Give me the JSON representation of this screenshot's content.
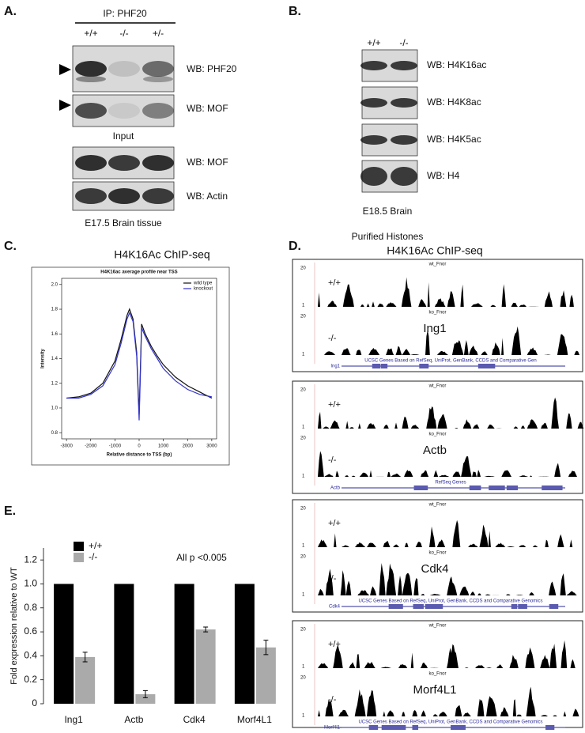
{
  "panel_a": {
    "letter": "A.",
    "ip": "IP: PHF20",
    "genotypes": [
      "+/+",
      "-/-",
      "+/-"
    ],
    "blots": [
      "WB: PHF20",
      "WB: MOF",
      "WB: MOF",
      "WB: Actin"
    ],
    "input": "Input",
    "caption": "E17.5 Brain tissue"
  },
  "panel_b": {
    "letter": "B.",
    "genotypes": [
      "+/+",
      "-/-"
    ],
    "blots": [
      "WB: H4K16ac",
      "WB: H4K8ac",
      "WB: H4K5ac",
      "WB: H4"
    ],
    "caption": "E18.5 Brain",
    "subcaption": "Purified Histones"
  },
  "panel_c": {
    "letter": "C.",
    "title": "H4K16Ac ChIP-seq"
  },
  "panel_d": {
    "letter": "D.",
    "title": "H4K16Ac ChIP-seq",
    "tracks": [
      {
        "wt_track": "wt_Fnor",
        "ko_track": "ko_Fnor",
        "scale_top": "20",
        "scale_bottom": "1",
        "wt": "+/+",
        "ko": "-/-",
        "gene": "Ing1",
        "annotation": "UCSC Genes Based on RefSeq, UniProt, GenBank, CCDS and Comparative Gen",
        "gene_label": "Ing1"
      },
      {
        "wt_track": "wt_Fnor",
        "ko_track": "ko_Fnor",
        "scale_top": "20",
        "scale_bottom": "1",
        "wt": "+/+",
        "ko": "-/-",
        "gene": "Actb",
        "annotation": "RefSeq Genes",
        "gene_label": "Actb"
      },
      {
        "wt_track": "wt_Fnor",
        "ko_track": "ko_Fnor",
        "scale_top": "20",
        "scale_bottom": "1",
        "wt": "+/+",
        "ko": "-/-",
        "gene": "Cdk4",
        "annotation": "UCSC Genes Based on RefSeq, UniProt, GenBank, CCDS and Comparative Genomics",
        "gene_label": "Cdk4"
      },
      {
        "wt_track": "wt_Fnor",
        "ko_track": "ko_Fnor",
        "scale_top": "20",
        "scale_bottom": "1",
        "wt": "+/+",
        "ko": "-/-",
        "gene": "Morf4L1",
        "annotation": "UCSC Genes Based on RefSeq, UniProt, GenBank, CCDS and Comparative Genomics",
        "gene_label": "Morf4l1"
      }
    ]
  },
  "panel_e": {
    "letter": "E."
  },
  "chart_data": [
    {
      "type": "line",
      "title": "H4K16ac average profile near TSS",
      "x_label": "Relative distance to TSS (bp)",
      "y_label": "Intensity",
      "x": [
        -3000,
        -2500,
        -2000,
        -1500,
        -1000,
        -750,
        -500,
        -400,
        -250,
        -100,
        0,
        50,
        100,
        250,
        500,
        750,
        1000,
        1500,
        2000,
        2500,
        3000
      ],
      "series": [
        {
          "name": "wild type",
          "color": "#111111",
          "values": [
            1.08,
            1.09,
            1.12,
            1.2,
            1.38,
            1.55,
            1.75,
            1.8,
            1.72,
            1.45,
            0.95,
            1.3,
            1.68,
            1.6,
            1.5,
            1.42,
            1.35,
            1.25,
            1.18,
            1.13,
            1.08
          ]
        },
        {
          "name": "knockout",
          "color": "#3333cc",
          "values": [
            1.08,
            1.08,
            1.11,
            1.18,
            1.35,
            1.52,
            1.72,
            1.77,
            1.7,
            1.42,
            0.9,
            1.25,
            1.65,
            1.58,
            1.48,
            1.4,
            1.32,
            1.22,
            1.15,
            1.11,
            1.09
          ]
        }
      ],
      "xlim": [
        -3200,
        3200
      ],
      "ylim": [
        0.75,
        2.05
      ],
      "xticks": [
        -3000,
        -2000,
        -1000,
        0,
        1000,
        2000,
        3000
      ],
      "yticks": [
        0.8,
        {
          "value": 1,
          "label": "1.0"
        },
        1.2,
        1.4,
        1.6,
        1.8,
        {
          "value": 2,
          "label": "2.0"
        }
      ],
      "legend": "top-right"
    },
    {
      "type": "bar",
      "y_label": "Fold expression relative to WT",
      "annotation": "All p <0.005",
      "categories": [
        "Ing1",
        "Actb",
        "Cdk4",
        "Morf4L1"
      ],
      "series": [
        {
          "name": "+/+",
          "color": "#000000",
          "values": [
            1,
            1,
            1,
            1
          ]
        },
        {
          "name": "-/-",
          "color": "#aaaaaa",
          "values": [
            0.39,
            0.08,
            0.62,
            0.47
          ],
          "errors": [
            0.04,
            0.03,
            0.02,
            0.06
          ]
        }
      ],
      "ylim": [
        0,
        1.3
      ],
      "yticks": [
        0,
        0.2,
        0.4,
        0.6,
        0.8,
        {
          "value": 1,
          "label": "1.0"
        },
        1.2
      ],
      "legend": "top-left"
    }
  ]
}
